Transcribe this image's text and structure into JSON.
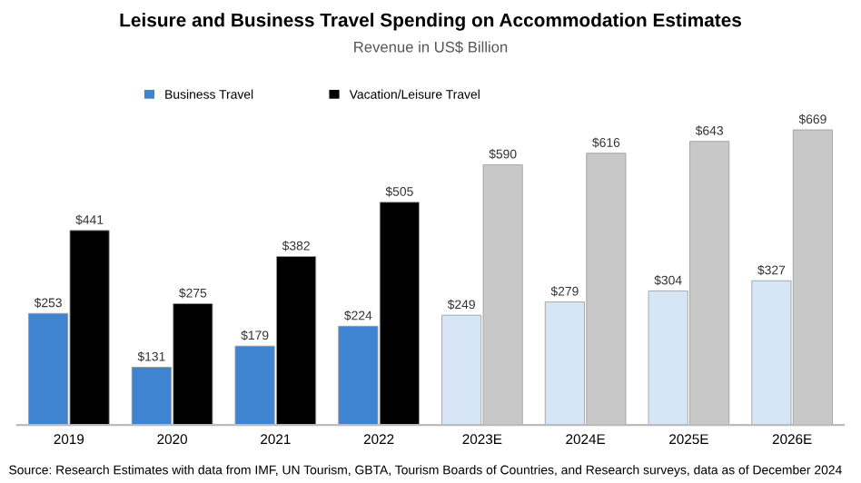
{
  "chart_data": {
    "type": "bar",
    "title": "Leisure and Business Travel Spending on Accommodation Estimates",
    "subtitle": "Revenue in US$ Billion",
    "categories": [
      "2019",
      "2020",
      "2021",
      "2022",
      "2023E",
      "2024E",
      "2025E",
      "2026E"
    ],
    "series": [
      {
        "name": "Business Travel",
        "color": "#3f84d1",
        "colors": [
          "#3f84d1",
          "#3f84d1",
          "#3f84d1",
          "#3f84d1",
          "#d6e6f7",
          "#d6e6f7",
          "#d6e6f7",
          "#d6e6f7"
        ],
        "values": [
          253,
          131,
          179,
          224,
          249,
          279,
          304,
          327
        ],
        "value_labels": [
          "$253",
          "$131",
          "$179",
          "$224",
          "$249",
          "$279",
          "$304",
          "$327"
        ]
      },
      {
        "name": "Vacation/Leisure Travel",
        "color": "#000000",
        "colors": [
          "#000000",
          "#000000",
          "#000000",
          "#000000",
          "#c8c8c8",
          "#c8c8c8",
          "#c8c8c8",
          "#c8c8c8"
        ],
        "values": [
          441,
          275,
          382,
          505,
          590,
          616,
          643,
          669
        ],
        "value_labels": [
          "$441",
          "$275",
          "$382",
          "$505",
          "$590",
          "$616",
          "$643",
          "$669"
        ]
      }
    ],
    "legend": "top left",
    "grid": false,
    "tick_labels": "x",
    "annotations": [
      "Source: Research Estimates with data from IMF, UN Tourism, GBTA, Tourism Boards of Countries, and Research surveys, data as of December 2024"
    ]
  }
}
